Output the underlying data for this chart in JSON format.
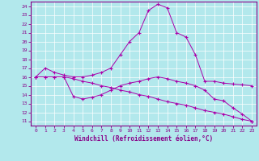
{
  "xlabel": "Windchill (Refroidissement éolien,°C)",
  "background_color": "#b2e8ec",
  "grid_color": "#ffffff",
  "line_color": "#aa00aa",
  "xlim": [
    -0.5,
    23.5
  ],
  "ylim": [
    10.5,
    24.5
  ],
  "xticks": [
    0,
    1,
    2,
    3,
    4,
    5,
    6,
    7,
    8,
    9,
    10,
    11,
    12,
    13,
    14,
    15,
    16,
    17,
    18,
    19,
    20,
    21,
    22,
    23
  ],
  "yticks": [
    11,
    12,
    13,
    14,
    15,
    16,
    17,
    18,
    19,
    20,
    21,
    22,
    23,
    24
  ],
  "line1_x": [
    0,
    1,
    2,
    3,
    4,
    5,
    6,
    7,
    8,
    9,
    10,
    11,
    12,
    13,
    14,
    15,
    16,
    17,
    18,
    19,
    20,
    21,
    22,
    23
  ],
  "line1_y": [
    16.0,
    17.0,
    16.5,
    16.2,
    16.0,
    16.0,
    16.2,
    16.5,
    17.0,
    18.5,
    20.0,
    21.0,
    23.5,
    24.2,
    23.8,
    21.0,
    20.5,
    18.5,
    15.5,
    15.5,
    15.3,
    15.2,
    15.1,
    15.0
  ],
  "line2_x": [
    0,
    1,
    2,
    3,
    4,
    5,
    6,
    7,
    8,
    9,
    10,
    11,
    12,
    13,
    14,
    15,
    16,
    17,
    18,
    19,
    20,
    21,
    22,
    23
  ],
  "line2_y": [
    16.0,
    16.0,
    16.0,
    16.0,
    13.8,
    13.5,
    13.7,
    14.0,
    14.5,
    15.0,
    15.3,
    15.5,
    15.8,
    16.0,
    15.8,
    15.5,
    15.3,
    15.0,
    14.5,
    13.5,
    13.3,
    12.5,
    11.8,
    11.0
  ],
  "line3_x": [
    0,
    1,
    2,
    3,
    4,
    5,
    6,
    7,
    8,
    9,
    10,
    11,
    12,
    13,
    14,
    15,
    16,
    17,
    18,
    19,
    20,
    21,
    22,
    23
  ],
  "line3_y": [
    16.0,
    16.0,
    16.0,
    16.0,
    15.8,
    15.5,
    15.3,
    15.0,
    14.8,
    14.5,
    14.3,
    14.0,
    13.8,
    13.5,
    13.2,
    13.0,
    12.8,
    12.5,
    12.2,
    12.0,
    11.8,
    11.5,
    11.2,
    11.0
  ]
}
